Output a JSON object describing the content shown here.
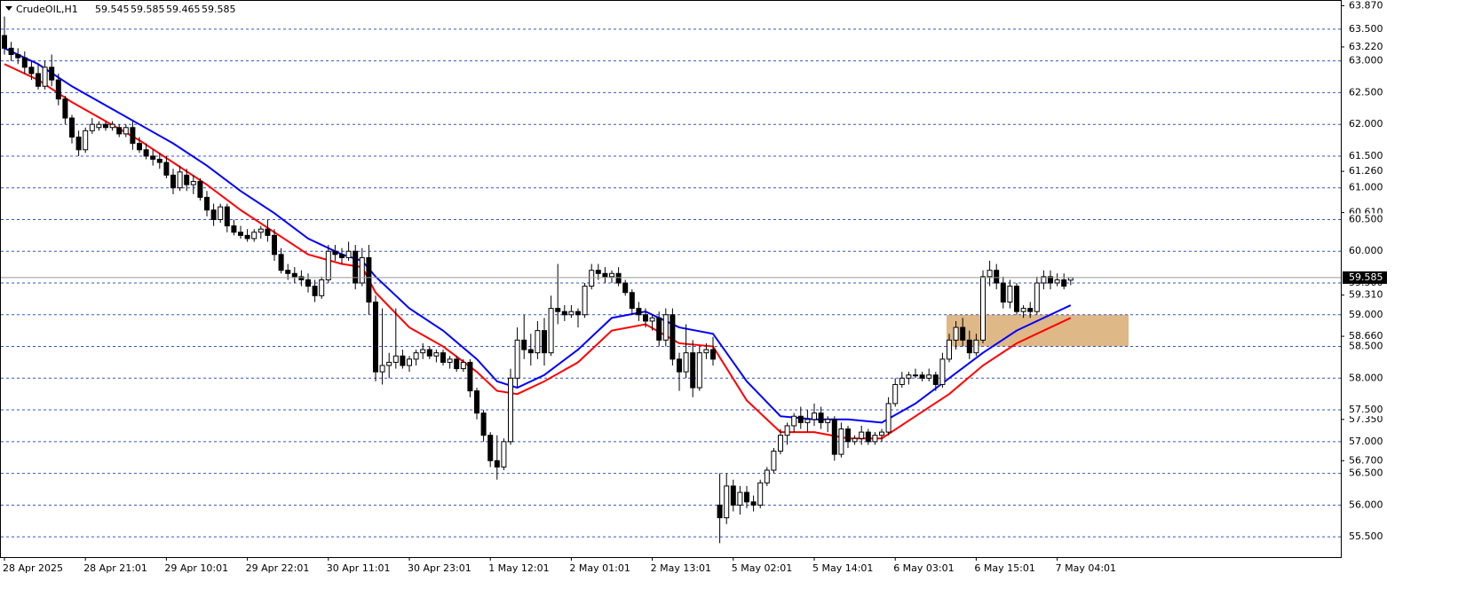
{
  "chart_data": {
    "type": "candlestick",
    "symbol": "CrudeOIL,H1",
    "ylim": [
      55.18,
      63.96
    ],
    "yticks": [
      {
        "value": 63.87,
        "label": "63.870"
      },
      {
        "value": 63.22,
        "label": "63.220"
      },
      {
        "value": 61.26,
        "label": "61.260"
      },
      {
        "value": 60.61,
        "label": "60.610"
      },
      {
        "value": 59.31,
        "label": "59.310"
      },
      {
        "value": 58.66,
        "label": "58.660"
      },
      {
        "value": 57.35,
        "label": "57.350"
      },
      {
        "value": 56.7,
        "label": "56.700"
      }
    ],
    "levels": [
      {
        "value": 63.5,
        "label": "63.500"
      },
      {
        "value": 63,
        "label": "63.000"
      },
      {
        "value": 62.5,
        "label": "62.500"
      },
      {
        "value": 62,
        "label": "62.000"
      },
      {
        "value": 61.5,
        "label": "61.500"
      },
      {
        "value": 61,
        "label": "61.000"
      },
      {
        "value": 60.5,
        "label": "60.500"
      },
      {
        "value": 60,
        "label": "60.000"
      },
      {
        "value": 59.5,
        "label": "59.500"
      },
      {
        "value": 59,
        "label": "59.000"
      },
      {
        "value": 58.5,
        "label": "58.500"
      },
      {
        "value": 58,
        "label": "58.000"
      },
      {
        "value": 57.5,
        "label": "57.500"
      },
      {
        "value": 57,
        "label": "57.000"
      },
      {
        "value": 56.5,
        "label": "56.500"
      },
      {
        "value": 56,
        "label": "56.000"
      },
      {
        "value": 55.5,
        "label": "55.500"
      }
    ],
    "level_color": "#3355cc",
    "zone": {
      "from": 58.5,
      "to": 59,
      "color": "#deb887"
    },
    "bull_color": "#ffffff",
    "bear_color": "#000000",
    "categories": [
      "28 Apr 2025",
      null,
      null,
      null,
      null,
      null,
      null,
      null,
      null,
      null,
      null,
      null,
      "28 Apr 21:01",
      null,
      null,
      null,
      null,
      null,
      null,
      null,
      null,
      null,
      null,
      null,
      "29 Apr 10:01",
      null,
      null,
      null,
      null,
      null,
      null,
      null,
      null,
      null,
      null,
      null,
      "29 Apr 22:01",
      null,
      null,
      null,
      null,
      null,
      null,
      null,
      null,
      null,
      null,
      null,
      "30 Apr 11:01",
      null,
      null,
      null,
      null,
      null,
      null,
      null,
      null,
      null,
      null,
      null,
      "30 Apr 23:01",
      null,
      null,
      null,
      null,
      null,
      null,
      null,
      null,
      null,
      null,
      null,
      "1 May 12:01",
      null,
      null,
      null,
      null,
      null,
      null,
      null,
      null,
      null,
      null,
      null,
      "2 May 01:01",
      null,
      null,
      null,
      null,
      null,
      null,
      null,
      null,
      null,
      null,
      null,
      "2 May 13:01",
      null,
      null,
      null,
      null,
      null,
      null,
      null,
      null,
      null,
      null,
      null,
      "5 May 02:01",
      null,
      null,
      null,
      null,
      null,
      null,
      null,
      null,
      null,
      null,
      null,
      "5 May 14:01",
      null,
      null,
      null,
      null,
      null,
      null,
      null,
      null,
      null,
      null,
      null,
      "6 May 03:01",
      null,
      null,
      null,
      null,
      null,
      null,
      null,
      null,
      null,
      null,
      null,
      "6 May 15:01",
      null,
      null,
      null,
      null,
      null,
      null,
      null,
      null,
      null,
      null,
      null,
      "7 May 04:01",
      null,
      null
    ],
    "candles": [
      [
        63.4,
        63.7,
        63.1,
        63.2
      ],
      [
        63.2,
        63.3,
        63.0,
        63.1
      ],
      [
        63.1,
        63.2,
        62.95,
        63.05
      ],
      [
        63.05,
        63.15,
        62.8,
        62.9
      ],
      [
        62.9,
        63.0,
        62.7,
        62.8
      ],
      [
        62.8,
        62.95,
        62.55,
        62.6
      ],
      [
        62.6,
        63.0,
        62.55,
        62.9
      ],
      [
        62.9,
        63.1,
        62.6,
        62.7
      ],
      [
        62.7,
        62.8,
        62.3,
        62.4
      ],
      [
        62.4,
        62.45,
        62.0,
        62.1
      ],
      [
        62.1,
        62.15,
        61.7,
        61.8
      ],
      [
        61.8,
        61.9,
        61.5,
        61.6
      ],
      [
        61.6,
        61.95,
        61.55,
        61.9
      ],
      [
        61.9,
        62.1,
        61.85,
        62.0
      ],
      [
        61.95,
        62.05,
        61.9,
        62.0
      ],
      [
        62.0,
        62.05,
        61.9,
        61.95
      ],
      [
        61.95,
        62.05,
        61.9,
        62.0
      ],
      [
        61.95,
        62.0,
        61.8,
        61.85
      ],
      [
        61.85,
        62.0,
        61.8,
        61.95
      ],
      [
        61.95,
        62.05,
        61.6,
        61.7
      ],
      [
        61.7,
        61.8,
        61.55,
        61.6
      ],
      [
        61.6,
        61.7,
        61.45,
        61.5
      ],
      [
        61.5,
        61.6,
        61.35,
        61.45
      ],
      [
        61.45,
        61.55,
        61.3,
        61.4
      ],
      [
        61.4,
        61.5,
        61.15,
        61.2
      ],
      [
        61.2,
        61.3,
        60.9,
        61.0
      ],
      [
        61.0,
        61.35,
        60.95,
        61.25
      ],
      [
        61.2,
        61.3,
        60.95,
        61.05
      ],
      [
        61.05,
        61.2,
        60.9,
        61.1
      ],
      [
        61.1,
        61.15,
        60.8,
        60.85
      ],
      [
        60.85,
        60.95,
        60.55,
        60.65
      ],
      [
        60.65,
        60.75,
        60.4,
        60.5
      ],
      [
        60.5,
        60.75,
        60.45,
        60.7
      ],
      [
        60.7,
        60.75,
        60.3,
        60.4
      ],
      [
        60.4,
        60.5,
        60.25,
        60.3
      ],
      [
        60.3,
        60.4,
        60.2,
        60.25
      ],
      [
        60.25,
        60.35,
        60.15,
        60.2
      ],
      [
        60.2,
        60.35,
        60.15,
        60.3
      ],
      [
        60.3,
        60.4,
        60.2,
        60.35
      ],
      [
        60.35,
        60.5,
        60.15,
        60.25
      ],
      [
        60.25,
        60.35,
        59.85,
        59.95
      ],
      [
        59.95,
        60.05,
        59.65,
        59.7
      ],
      [
        59.7,
        59.8,
        59.55,
        59.65
      ],
      [
        59.65,
        59.75,
        59.5,
        59.6
      ],
      [
        59.6,
        59.7,
        59.45,
        59.55
      ],
      [
        59.55,
        59.65,
        59.35,
        59.45
      ],
      [
        59.45,
        59.55,
        59.2,
        59.3
      ],
      [
        59.3,
        59.6,
        59.25,
        59.55
      ],
      [
        59.55,
        60.1,
        59.5,
        60.0
      ],
      [
        60.0,
        60.1,
        59.85,
        59.95
      ],
      [
        59.95,
        60.05,
        59.8,
        59.9
      ],
      [
        59.9,
        60.15,
        59.85,
        60.0
      ],
      [
        60.0,
        60.1,
        59.4,
        59.5
      ],
      [
        59.5,
        60.05,
        59.45,
        59.9
      ],
      [
        59.9,
        60.1,
        59.0,
        59.2
      ],
      [
        59.2,
        59.3,
        57.95,
        58.1
      ],
      [
        58.1,
        59.1,
        57.9,
        58.2
      ],
      [
        58.2,
        58.4,
        58.0,
        58.25
      ],
      [
        58.25,
        59.1,
        58.15,
        58.35
      ],
      [
        58.35,
        58.45,
        58.15,
        58.2
      ],
      [
        58.2,
        58.35,
        58.1,
        58.3
      ],
      [
        58.3,
        58.45,
        58.2,
        58.4
      ],
      [
        58.4,
        58.55,
        58.3,
        58.45
      ],
      [
        58.45,
        58.5,
        58.3,
        58.35
      ],
      [
        58.35,
        58.45,
        58.25,
        58.4
      ],
      [
        58.4,
        58.45,
        58.2,
        58.25
      ],
      [
        58.25,
        58.35,
        58.15,
        58.3
      ],
      [
        58.3,
        58.35,
        58.1,
        58.15
      ],
      [
        58.15,
        58.3,
        58.1,
        58.25
      ],
      [
        58.25,
        58.3,
        57.7,
        57.8
      ],
      [
        57.8,
        57.85,
        57.35,
        57.45
      ],
      [
        57.45,
        57.5,
        57.0,
        57.1
      ],
      [
        57.1,
        57.15,
        56.6,
        56.7
      ],
      [
        56.7,
        57.1,
        56.4,
        56.6
      ],
      [
        56.6,
        57.05,
        56.55,
        57.0
      ],
      [
        57.0,
        58.15,
        56.95,
        58.0
      ],
      [
        58.0,
        58.8,
        57.85,
        58.6
      ],
      [
        58.6,
        59.0,
        58.3,
        58.45
      ],
      [
        58.45,
        58.7,
        58.2,
        58.4
      ],
      [
        58.4,
        58.9,
        58.3,
        58.75
      ],
      [
        58.75,
        58.95,
        58.2,
        58.4
      ],
      [
        58.4,
        59.3,
        58.35,
        59.1
      ],
      [
        59.1,
        59.8,
        58.85,
        59.05
      ],
      [
        59.05,
        59.15,
        58.9,
        59.0
      ],
      [
        59.0,
        59.15,
        58.95,
        59.05
      ],
      [
        59.05,
        59.1,
        58.8,
        59.0
      ],
      [
        59.0,
        59.5,
        58.95,
        59.45
      ],
      [
        59.45,
        59.8,
        59.4,
        59.7
      ],
      [
        59.7,
        59.8,
        59.55,
        59.65
      ],
      [
        59.65,
        59.75,
        59.5,
        59.6
      ],
      [
        59.6,
        59.7,
        59.5,
        59.65
      ],
      [
        59.65,
        59.75,
        59.45,
        59.5
      ],
      [
        59.5,
        59.55,
        59.3,
        59.35
      ],
      [
        59.35,
        59.4,
        59.0,
        59.1
      ],
      [
        59.1,
        59.2,
        58.9,
        59.0
      ],
      [
        59.0,
        59.1,
        58.8,
        58.9
      ],
      [
        58.9,
        59.0,
        58.75,
        58.95
      ],
      [
        58.95,
        59.05,
        58.5,
        58.6
      ],
      [
        58.6,
        59.1,
        58.5,
        59.0
      ],
      [
        59.0,
        59.1,
        58.2,
        58.3
      ],
      [
        58.3,
        58.4,
        57.8,
        58.1
      ],
      [
        58.1,
        58.85,
        58.0,
        58.4
      ],
      [
        58.4,
        58.6,
        57.7,
        57.85
      ],
      [
        57.85,
        58.5,
        57.8,
        58.4
      ],
      [
        58.4,
        58.55,
        58.3,
        58.45
      ],
      [
        58.45,
        58.65,
        58.2,
        58.3
      ],
      [
        56.0,
        56.5,
        55.4,
        55.8
      ],
      [
        55.8,
        56.5,
        55.7,
        56.3
      ],
      [
        56.3,
        56.4,
        55.9,
        56.0
      ],
      [
        56.0,
        56.3,
        55.85,
        56.2
      ],
      [
        56.2,
        56.3,
        55.95,
        56.05
      ],
      [
        56.05,
        56.15,
        55.9,
        56.0
      ],
      [
        56.0,
        56.4,
        55.95,
        56.35
      ],
      [
        56.35,
        56.6,
        56.3,
        56.55
      ],
      [
        56.55,
        56.9,
        56.5,
        56.85
      ],
      [
        56.85,
        57.2,
        56.8,
        57.1
      ],
      [
        57.1,
        57.3,
        56.95,
        57.25
      ],
      [
        57.25,
        57.45,
        57.15,
        57.4
      ],
      [
        57.4,
        57.55,
        57.2,
        57.3
      ],
      [
        57.3,
        57.5,
        57.15,
        57.35
      ],
      [
        57.35,
        57.6,
        57.25,
        57.45
      ],
      [
        57.45,
        57.55,
        57.2,
        57.3
      ],
      [
        57.3,
        57.4,
        57.15,
        57.35
      ],
      [
        57.35,
        57.4,
        56.7,
        56.8
      ],
      [
        56.8,
        57.3,
        56.75,
        57.2
      ],
      [
        57.2,
        57.25,
        56.9,
        57.0
      ],
      [
        57.0,
        57.1,
        56.95,
        57.05
      ],
      [
        57.05,
        57.25,
        56.95,
        57.15
      ],
      [
        57.15,
        57.2,
        56.95,
        57.0
      ],
      [
        57.0,
        57.15,
        56.95,
        57.1
      ],
      [
        57.1,
        57.2,
        57.0,
        57.15
      ],
      [
        57.15,
        57.7,
        57.1,
        57.6
      ],
      [
        57.6,
        58.0,
        57.55,
        57.9
      ],
      [
        57.9,
        58.1,
        57.85,
        58.0
      ],
      [
        58.0,
        58.1,
        57.9,
        58.05
      ],
      [
        58.05,
        58.15,
        58.0,
        58.05
      ],
      [
        58.05,
        58.1,
        57.95,
        58.0
      ],
      [
        58.0,
        58.15,
        57.95,
        58.05
      ],
      [
        58.05,
        58.1,
        57.8,
        57.9
      ],
      [
        57.9,
        58.4,
        57.85,
        58.3
      ],
      [
        58.3,
        58.7,
        58.25,
        58.6
      ],
      [
        58.6,
        58.9,
        58.45,
        58.8
      ],
      [
        58.8,
        58.95,
        58.5,
        58.6
      ],
      [
        58.6,
        58.75,
        58.3,
        58.4
      ],
      [
        58.4,
        58.7,
        58.35,
        58.6
      ],
      [
        58.6,
        59.7,
        58.55,
        59.6
      ],
      [
        59.6,
        59.85,
        59.45,
        59.7
      ],
      [
        59.7,
        59.8,
        59.4,
        59.5
      ],
      [
        59.5,
        59.6,
        59.1,
        59.2
      ],
      [
        59.2,
        59.55,
        59.1,
        59.45
      ],
      [
        59.45,
        59.5,
        59.0,
        59.05
      ],
      [
        59.05,
        59.15,
        58.95,
        59.1
      ],
      [
        59.1,
        59.2,
        58.95,
        59.05
      ],
      [
        59.05,
        59.6,
        59.0,
        59.5
      ],
      [
        59.5,
        59.7,
        59.4,
        59.6
      ],
      [
        59.6,
        59.7,
        59.4,
        59.5
      ],
      [
        59.5,
        59.65,
        59.45,
        59.55
      ],
      [
        59.55,
        59.65,
        59.4,
        59.45
      ],
      [
        59.545,
        59.585,
        59.465,
        59.585
      ]
    ],
    "lines": [
      {
        "color": "#0000ff",
        "x": [
          0,
          5,
          10,
          15,
          20,
          25,
          30,
          35,
          40,
          45,
          50,
          53,
          55,
          60,
          65,
          70,
          73,
          76,
          80,
          85,
          90,
          95,
          100,
          105,
          110,
          115,
          120,
          125,
          130,
          135,
          140,
          145,
          150,
          155,
          158
        ],
        "values": [
          63.2,
          62.95,
          62.6,
          62.3,
          62.0,
          61.7,
          61.35,
          60.95,
          60.6,
          60.2,
          59.95,
          59.85,
          59.6,
          59.1,
          58.75,
          58.3,
          57.95,
          57.85,
          58.05,
          58.45,
          58.95,
          59.05,
          58.8,
          58.7,
          57.95,
          57.4,
          57.35,
          57.35,
          57.3,
          57.6,
          58.0,
          58.4,
          58.75,
          59.0,
          59.15
        ]
      },
      {
        "color": "#ff0000",
        "x": [
          0,
          5,
          10,
          15,
          20,
          25,
          30,
          35,
          40,
          45,
          50,
          53,
          55,
          60,
          65,
          70,
          73,
          76,
          80,
          85,
          90,
          95,
          100,
          105,
          110,
          115,
          120,
          125,
          130,
          135,
          140,
          145,
          150,
          155,
          158
        ],
        "values": [
          62.95,
          62.7,
          62.35,
          62.05,
          61.75,
          61.4,
          61.05,
          60.65,
          60.3,
          59.95,
          59.8,
          59.75,
          59.35,
          58.8,
          58.5,
          58.1,
          57.8,
          57.75,
          57.95,
          58.25,
          58.75,
          58.85,
          58.55,
          58.5,
          57.65,
          57.15,
          57.15,
          57.05,
          57.05,
          57.4,
          57.75,
          58.2,
          58.55,
          58.8,
          58.95
        ]
      }
    ]
  }
}
